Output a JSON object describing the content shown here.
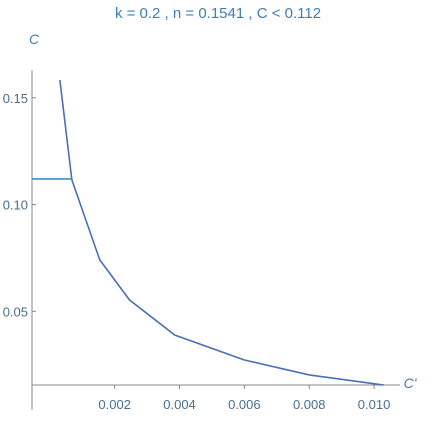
{
  "chart_data": {
    "type": "line",
    "title": "k = 0.2 , n = 0.1541 , C < 0.112",
    "xlabel": "C'",
    "ylabel": "C",
    "xlim": [
      -0.00055,
      0.0108
    ],
    "ylim": [
      0.0155,
      0.163
    ],
    "xticks": [
      0.002,
      0.004,
      0.006,
      0.008,
      {
        "value": 0.01,
        "label": "0.010"
      }
    ],
    "yticks": [
      {
        "value": 0.05,
        "label": "0.05"
      },
      {
        "value": 0.1,
        "label": "0.10"
      },
      0.15
    ],
    "series": [
      {
        "color": "#4a6fb5",
        "x": [
          0.00031,
          0.00068,
          0.00154,
          0.00246,
          0.00385,
          0.006,
          0.008,
          0.0103
        ],
        "values": [
          0.1583,
          0.1115,
          0.0741,
          0.0553,
          0.0389,
          0.0272,
          0.0202,
          0.0155
        ]
      },
      {
        "color": "#3d8fb8",
        "x": [
          -0.00055,
          0.00068
        ],
        "values": [
          0.112,
          0.112
        ]
      }
    ]
  }
}
